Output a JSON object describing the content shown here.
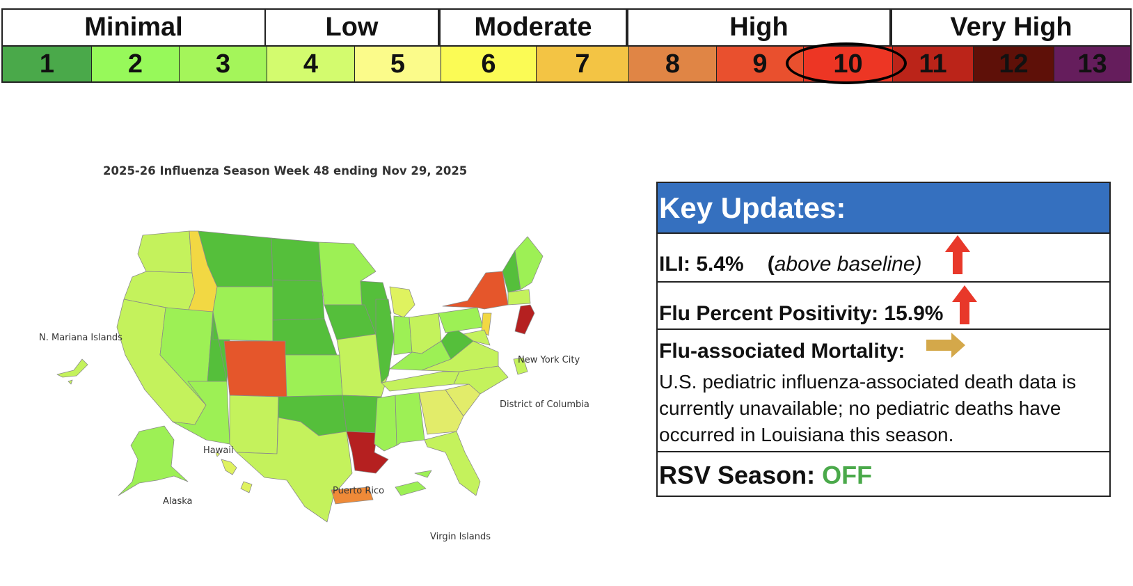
{
  "scale": {
    "categories": [
      {
        "label": "Minimal"
      },
      {
        "label": "Low"
      },
      {
        "label": "Moderate"
      },
      {
        "label": "High"
      },
      {
        "label": "Very High"
      }
    ],
    "levels": [
      {
        "label": "1",
        "color": "#4aa94a"
      },
      {
        "label": "2",
        "color": "#97f95a"
      },
      {
        "label": "3",
        "color": "#a4f55a"
      },
      {
        "label": "4",
        "color": "#d3fb6e"
      },
      {
        "label": "5",
        "color": "#fbfb8a"
      },
      {
        "label": "6",
        "color": "#fbfb55"
      },
      {
        "label": "7",
        "color": "#f3c444"
      },
      {
        "label": "8",
        "color": "#e08545"
      },
      {
        "label": "9",
        "color": "#e9502e"
      },
      {
        "label": "10",
        "color": "#ed3624"
      },
      {
        "label": "11",
        "color": "#bb2419"
      },
      {
        "label": "12",
        "color": "#5e1008"
      },
      {
        "label": "13",
        "color": "#651d5c"
      }
    ],
    "current_level": "10"
  },
  "map": {
    "title": "2025-26 Influenza Season Week 48 ending Nov 29, 2025",
    "labels": {
      "mariana": "N. Mariana Islands",
      "nyc": "New York City",
      "dc": "District of Columbia",
      "hawaii": "Hawaii",
      "alaska": "Alaska",
      "puerto_rico": "Puerto Rico",
      "virgin_islands": "Virgin Islands"
    }
  },
  "key_updates": {
    "header": "Key Updates:",
    "ili_label": "ILI: 5.4%",
    "ili_note": "above baseline",
    "ili_trend": "up-arrow",
    "positivity_label": "Flu Percent Positivity: 15.9%",
    "positivity_trend": "up-arrow",
    "mortality_label": "Flu-associated Mortality:",
    "mortality_trend": "right-arrow",
    "mortality_desc": "U.S. pediatric influenza-associated death data is currently unavailable; no pediatric deaths have occurred in Louisiana this season.",
    "rsv_label": "RSV Season:",
    "rsv_value": "OFF",
    "rsv_color": "#4aa94a",
    "trend_up_color": "#e8382a",
    "trend_flat_color": "#d4a84a",
    "header_color": "#3570bf"
  }
}
